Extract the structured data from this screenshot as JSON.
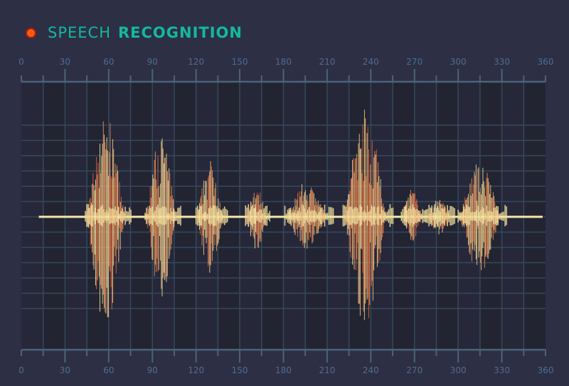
{
  "header": {
    "title_light": "SPEECH",
    "title_bold": "RECOGNITION",
    "indicator_color": "#ff5a10",
    "accent_color": "#14b8a0"
  },
  "axis": {
    "min": 0,
    "max": 360,
    "tick_labels": [
      "0",
      "30",
      "60",
      "90",
      "120",
      "150",
      "180",
      "210",
      "240",
      "270",
      "300",
      "330",
      "360"
    ],
    "minor_step": 15
  },
  "waveform": {
    "colors": [
      "#f0965a",
      "#f5e3a0",
      "#e8683c",
      "#f8c884"
    ],
    "baseline": [
      12,
      358
    ],
    "bursts": [
      {
        "start": 44,
        "end": 76,
        "up": 0.9,
        "down": 1.0
      },
      {
        "start": 85,
        "end": 110,
        "up": 0.75,
        "down": 0.72
      },
      {
        "start": 120,
        "end": 142,
        "up": 0.5,
        "down": 0.5
      },
      {
        "start": 154,
        "end": 171,
        "up": 0.28,
        "down": 0.31
      },
      {
        "start": 181,
        "end": 215,
        "up": 0.31,
        "down": 0.28
      },
      {
        "start": 221,
        "end": 256,
        "up": 1.0,
        "down": 1.0
      },
      {
        "start": 261,
        "end": 278,
        "up": 0.25,
        "down": 0.22
      },
      {
        "start": 278,
        "end": 298,
        "up": 0.16,
        "down": 0.16
      },
      {
        "start": 300,
        "end": 334,
        "up": 0.5,
        "down": 0.5
      }
    ]
  }
}
